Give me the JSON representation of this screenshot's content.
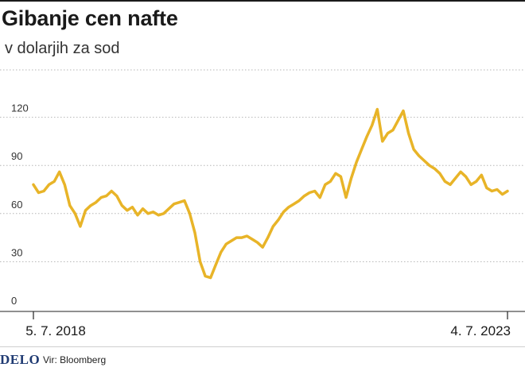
{
  "header": {
    "title": "Gibanje cen nafte",
    "subtitle": "v dolarjih za sod"
  },
  "footer": {
    "brand": "DELO",
    "source": "Vir: Bloomberg"
  },
  "colors": {
    "line": "#e8b428",
    "grid": "#b5b5b5",
    "text": "#1a1a1a",
    "brand": "#1f3a72"
  },
  "chart_data": {
    "type": "line",
    "title": "Gibanje cen nafte",
    "subtitle": "v dolarjih za sod",
    "xlabel": "",
    "ylabel": "",
    "ylim": [
      0,
      135
    ],
    "yticks": [
      0,
      30,
      60,
      90,
      120
    ],
    "ytick_labels": [
      "0",
      "30",
      "60",
      "90",
      "120"
    ],
    "xtick_labels": [
      "5. 7. 2018",
      "4. 7. 2023"
    ],
    "grid": "horizontal dotted",
    "series": [
      {
        "values": [
          78,
          73,
          74,
          78,
          80,
          86,
          78,
          65,
          60,
          52,
          62,
          65,
          67,
          70,
          71,
          74,
          71,
          65,
          62,
          64,
          59,
          63,
          60,
          61,
          59,
          60,
          63,
          66,
          67,
          68,
          60,
          48,
          30,
          21,
          20,
          28,
          36,
          41,
          43,
          45,
          45,
          46,
          44,
          42,
          39,
          45,
          52,
          56,
          61,
          64,
          66,
          68,
          71,
          73,
          74,
          70,
          78,
          80,
          85,
          83,
          70,
          82,
          92,
          100,
          108,
          115,
          125,
          105,
          110,
          112,
          118,
          124,
          110,
          100,
          96,
          93,
          90,
          88,
          85,
          80,
          78,
          82,
          86,
          83,
          78,
          80,
          84,
          76,
          74,
          75,
          72,
          74
        ]
      }
    ]
  }
}
